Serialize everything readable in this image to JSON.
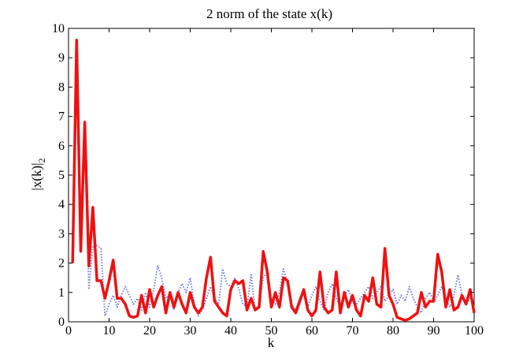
{
  "chart_data": {
    "type": "line",
    "title": "2 norm of the state x(k)",
    "xlabel": "k",
    "ylabel_main": "|x(k)|",
    "ylabel_sub": "2",
    "xlim": [
      0,
      100
    ],
    "ylim": [
      0,
      10
    ],
    "xticks": [
      0,
      10,
      20,
      30,
      40,
      50,
      60,
      70,
      80,
      90,
      100
    ],
    "yticks": [
      0,
      1,
      2,
      3,
      4,
      5,
      6,
      7,
      8,
      9,
      10
    ],
    "grid": false,
    "legend": "none",
    "series": [
      {
        "style": "dotted",
        "color": "#6f7bd8",
        "x": [
          1,
          2,
          3,
          4,
          5,
          6,
          7,
          8,
          9,
          10,
          11,
          12,
          13,
          14,
          15,
          16,
          17,
          18,
          19,
          20,
          21,
          22,
          23,
          24,
          25,
          26,
          27,
          28,
          29,
          30,
          31,
          32,
          33,
          34,
          35,
          36,
          37,
          38,
          39,
          40,
          41,
          42,
          43,
          44,
          45,
          46,
          47,
          48,
          49,
          50,
          51,
          52,
          53,
          54,
          55,
          56,
          57,
          58,
          59,
          60,
          61,
          62,
          63,
          64,
          65,
          66,
          67,
          68,
          69,
          70,
          71,
          72,
          73,
          74,
          75,
          76,
          77,
          78,
          79,
          80,
          81,
          82,
          83,
          84,
          85,
          86,
          87,
          88,
          89,
          90,
          91,
          92,
          93,
          94,
          95,
          96,
          97,
          98,
          99,
          100
        ],
        "y": [
          2.0,
          9.6,
          2.4,
          6.8,
          1.1,
          2.6,
          2.6,
          2.5,
          0.2,
          0.6,
          0.9,
          0.5,
          0.9,
          1.2,
          0.9,
          0.6,
          0.8,
          0.4,
          1.0,
          0.5,
          1.1,
          1.9,
          1.5,
          0.8,
          0.9,
          0.4,
          1.0,
          1.3,
          1.0,
          1.5,
          0.6,
          0.2,
          0.4,
          0.8,
          1.2,
          0.8,
          0.6,
          1.8,
          1.3,
          1.2,
          1.5,
          1.1,
          0.6,
          0.5,
          1.6,
          0.4,
          0.6,
          1.5,
          1.7,
          0.8,
          0.6,
          1.0,
          1.8,
          1.3,
          0.6,
          0.4,
          0.8,
          1.0,
          0.5,
          0.9,
          1.2,
          0.7,
          0.4,
          1.0,
          1.3,
          0.8,
          0.5,
          0.9,
          1.1,
          0.7,
          0.6,
          0.8,
          1.0,
          1.2,
          0.8,
          1.0,
          1.2,
          0.7,
          0.9,
          1.1,
          0.6,
          0.9,
          0.7,
          1.2,
          0.8,
          0.5,
          0.3,
          0.8,
          1.0,
          0.7,
          0.9,
          1.2,
          0.8,
          0.5,
          0.9,
          1.6,
          0.9,
          0.6,
          0.8,
          0.5
        ]
      },
      {
        "style": "solid",
        "color": "#ee1111",
        "x": [
          1,
          2,
          3,
          4,
          5,
          6,
          7,
          8,
          9,
          10,
          11,
          12,
          13,
          14,
          15,
          16,
          17,
          18,
          19,
          20,
          21,
          22,
          23,
          24,
          25,
          26,
          27,
          28,
          29,
          30,
          31,
          32,
          33,
          34,
          35,
          36,
          37,
          38,
          39,
          40,
          41,
          42,
          43,
          44,
          45,
          46,
          47,
          48,
          49,
          50,
          51,
          52,
          53,
          54,
          55,
          56,
          57,
          58,
          59,
          60,
          61,
          62,
          63,
          64,
          65,
          66,
          67,
          68,
          69,
          70,
          71,
          72,
          73,
          74,
          75,
          76,
          77,
          78,
          79,
          80,
          81,
          82,
          83,
          84,
          85,
          86,
          87,
          88,
          89,
          90,
          91,
          92,
          93,
          94,
          95,
          96,
          97,
          98,
          99,
          100
        ],
        "y": [
          2.0,
          9.6,
          2.4,
          6.8,
          1.9,
          3.9,
          1.4,
          1.4,
          0.8,
          1.4,
          2.1,
          0.8,
          0.8,
          0.6,
          0.2,
          0.15,
          0.2,
          0.9,
          0.3,
          1.1,
          0.5,
          0.9,
          1.2,
          0.3,
          1.0,
          0.5,
          1.0,
          0.6,
          0.3,
          1.0,
          0.5,
          0.3,
          0.5,
          1.5,
          2.2,
          0.7,
          0.5,
          0.3,
          0.2,
          1.1,
          1.4,
          1.3,
          1.4,
          0.4,
          0.8,
          0.4,
          0.5,
          2.4,
          1.7,
          0.5,
          1.0,
          0.5,
          1.5,
          1.4,
          0.5,
          0.3,
          0.7,
          1.1,
          0.4,
          0.2,
          0.4,
          1.7,
          0.5,
          0.3,
          0.4,
          1.7,
          0.3,
          1.0,
          0.5,
          0.9,
          0.4,
          0.2,
          0.9,
          0.7,
          1.5,
          0.6,
          0.5,
          2.5,
          0.9,
          0.6,
          0.15,
          0.1,
          0.05,
          0.1,
          0.2,
          0.3,
          1.0,
          0.5,
          0.7,
          0.7,
          2.3,
          1.7,
          0.5,
          1.1,
          0.4,
          0.5,
          0.9,
          0.6,
          1.1,
          0.3
        ]
      }
    ]
  }
}
